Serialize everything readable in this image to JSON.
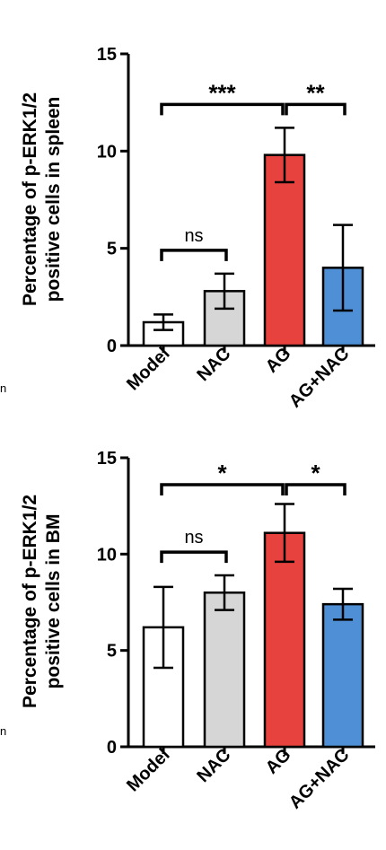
{
  "chart_data": [
    {
      "type": "bar",
      "ylabel_line1": "Percentage of p-ERK1/2",
      "ylabel_line2": "positive cells in spleen",
      "categories": [
        "Model",
        "NAC",
        "AG",
        "AG+NAC"
      ],
      "values": [
        1.2,
        2.8,
        9.8,
        4.0
      ],
      "errors": [
        0.4,
        0.9,
        1.4,
        2.2
      ],
      "colors": [
        "#ffffff",
        "#d6d6d6",
        "#e8423f",
        "#4f8fd6"
      ],
      "ylim": [
        0,
        15
      ],
      "yticks": [
        0,
        5,
        10,
        15
      ],
      "comparisons": [
        {
          "from": 0,
          "to": 2,
          "label": "***",
          "y": 12.4
        },
        {
          "from": 2,
          "to": 3,
          "label": "**",
          "y": 12.4
        },
        {
          "from": 0,
          "to": 1,
          "label": "ns",
          "y": 4.9
        }
      ]
    },
    {
      "type": "bar",
      "ylabel_line1": "Percentage of p-ERK1/2",
      "ylabel_line2": "positive cells in BM",
      "categories": [
        "Model",
        "NAC",
        "AG",
        "AG+NAC"
      ],
      "values": [
        6.2,
        8.0,
        11.1,
        7.4
      ],
      "errors": [
        2.1,
        0.9,
        1.5,
        0.8
      ],
      "colors": [
        "#ffffff",
        "#d6d6d6",
        "#e8423f",
        "#4f8fd6"
      ],
      "ylim": [
        0,
        15
      ],
      "yticks": [
        0,
        5,
        10,
        15
      ],
      "comparisons": [
        {
          "from": 0,
          "to": 2,
          "label": "*",
          "y": 13.6
        },
        {
          "from": 2,
          "to": 3,
          "label": "*",
          "y": 13.6
        },
        {
          "from": 0,
          "to": 1,
          "label": "ns",
          "y": 10.1
        }
      ]
    }
  ],
  "edge_letters": [
    "n",
    "n"
  ]
}
